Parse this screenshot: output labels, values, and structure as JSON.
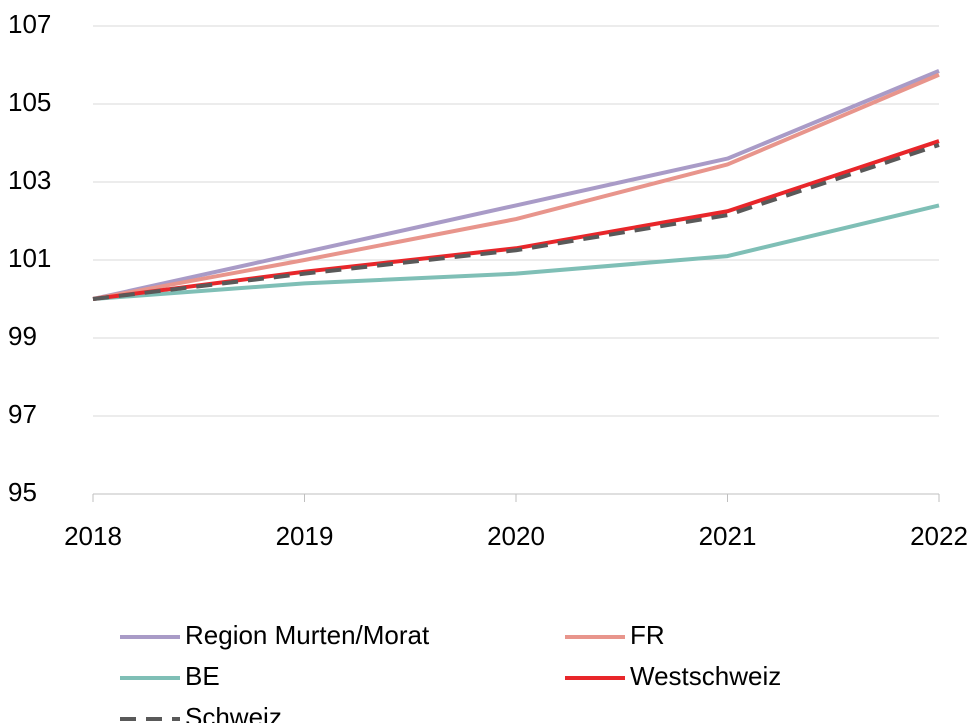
{
  "chart_data": {
    "type": "line",
    "categories": [
      "2018",
      "2019",
      "2020",
      "2021",
      "2022"
    ],
    "series": [
      {
        "name": "Region Murten/Morat",
        "color": "#a99bc7",
        "values": [
          100,
          101.2,
          102.4,
          103.6,
          105.85
        ]
      },
      {
        "name": "FR",
        "color": "#e8958c",
        "values": [
          100,
          101.0,
          102.05,
          103.45,
          105.75
        ]
      },
      {
        "name": "BE",
        "color": "#7fbfb6",
        "values": [
          100,
          100.4,
          100.65,
          101.1,
          102.4
        ]
      },
      {
        "name": "Westschweiz",
        "color": "#e8262a",
        "values": [
          100,
          100.7,
          101.3,
          102.25,
          104.05
        ]
      },
      {
        "name": "Schweiz",
        "color": "#595959",
        "dashed": true,
        "values": [
          100,
          100.65,
          101.25,
          102.15,
          103.95
        ]
      }
    ],
    "ylim": [
      95,
      107
    ],
    "yticks": [
      95,
      97,
      99,
      101,
      103,
      105,
      107
    ],
    "grid": true
  }
}
